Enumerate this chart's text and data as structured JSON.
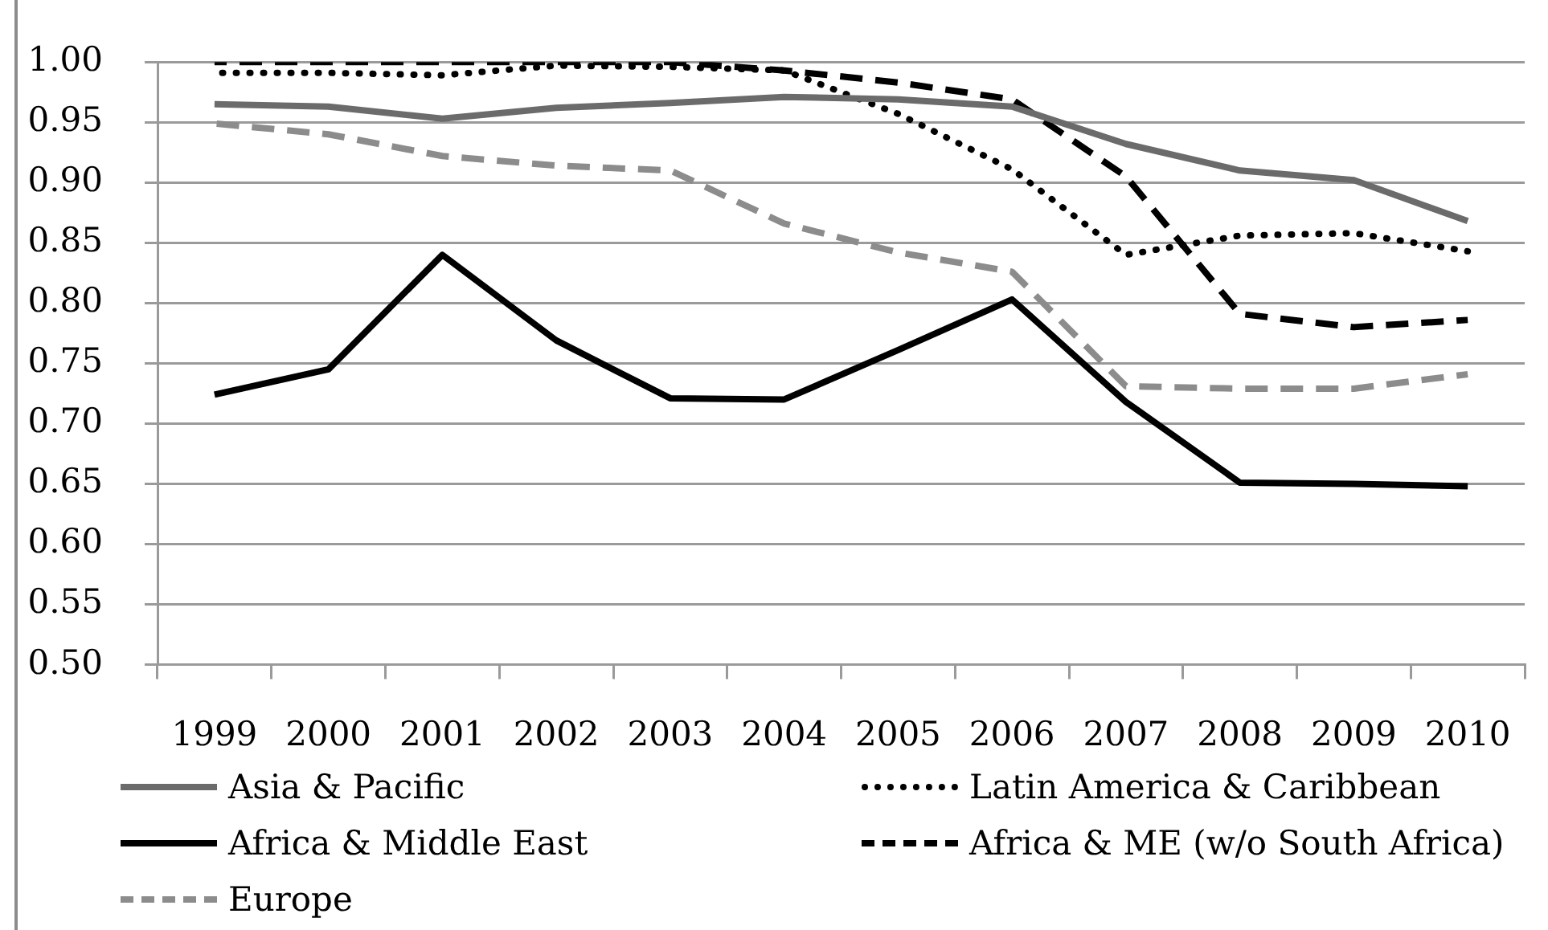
{
  "chart_data": {
    "type": "line",
    "categories": [
      "1999",
      "2000",
      "2001",
      "2002",
      "2003",
      "2004",
      "2005",
      "2006",
      "2007",
      "2008",
      "2009",
      "2010"
    ],
    "series": [
      {
        "name": "Asia & Pacific",
        "color": "#6b6b6b",
        "line_style": "solid",
        "values": [
          0.965,
          0.963,
          0.953,
          0.962,
          0.966,
          0.971,
          0.969,
          0.963,
          0.932,
          0.91,
          0.902,
          0.868
        ]
      },
      {
        "name": "Latin America & Caribbean",
        "color": "#000000",
        "line_style": "dotted",
        "values": [
          0.991,
          0.991,
          0.989,
          0.997,
          0.996,
          0.993,
          0.957,
          0.911,
          0.84,
          0.856,
          0.858,
          0.843
        ]
      },
      {
        "name": "Africa & Middle East",
        "color": "#000000",
        "line_style": "solid",
        "values": [
          0.724,
          0.745,
          0.84,
          0.769,
          0.721,
          0.72,
          0.761,
          0.803,
          0.718,
          0.651,
          0.65,
          0.648
        ]
      },
      {
        "name": "Africa & ME (w/o South Africa)",
        "color": "#000000",
        "line_style": "dashed",
        "values": [
          1.0,
          1.0,
          1.0,
          1.0,
          1.0,
          0.993,
          0.983,
          0.969,
          0.905,
          0.791,
          0.78,
          0.786
        ]
      },
      {
        "name": "Europe",
        "color": "#8c8c8c",
        "line_style": "dashed",
        "values": [
          0.949,
          0.94,
          0.922,
          0.914,
          0.91,
          0.866,
          0.842,
          0.826,
          0.731,
          0.729,
          0.729,
          0.741
        ]
      }
    ],
    "ylim": [
      0.5,
      1.0
    ],
    "yticks": [
      {
        "value": 0.5,
        "label": "0.50"
      },
      {
        "value": 0.55,
        "label": "0.55"
      },
      {
        "value": 0.6,
        "label": "0.60"
      },
      {
        "value": 0.65,
        "label": "0.65"
      },
      {
        "value": 0.7,
        "label": "0.70"
      },
      {
        "value": 0.75,
        "label": "0.75"
      },
      {
        "value": 0.8,
        "label": "0.80"
      },
      {
        "value": 0.85,
        "label": "0.85"
      },
      {
        "value": 0.9,
        "label": "0.90"
      },
      {
        "value": 0.95,
        "label": "0.95"
      },
      {
        "value": 1.0,
        "label": "1.00"
      }
    ],
    "grid": "y",
    "legend": "bottom",
    "marker": "none"
  }
}
